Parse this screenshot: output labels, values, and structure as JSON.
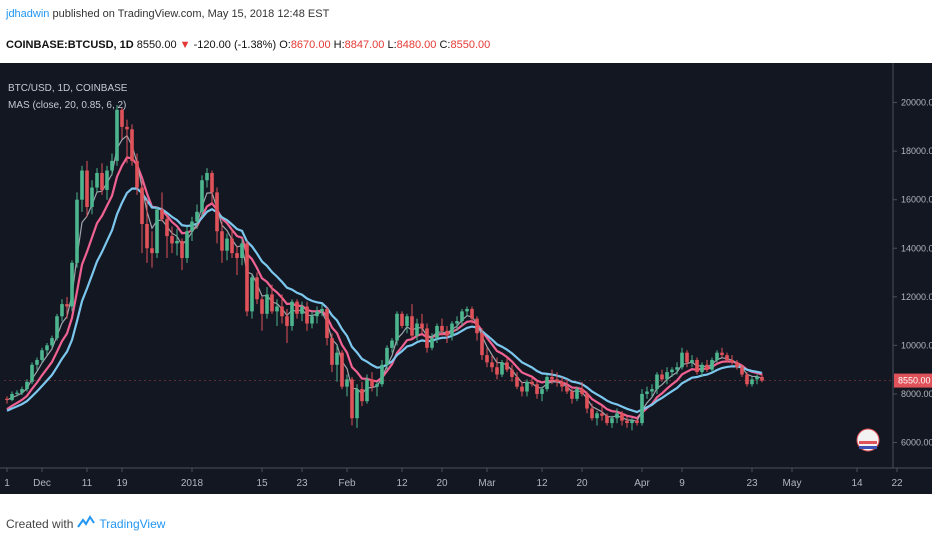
{
  "header": {
    "user": "jdhadwin",
    "published": "published on TradingView.com, May 15, 2018 12:48 EST",
    "symbol": "COINBASE:BTCUSD, 1D",
    "last": "8550.00",
    "arrow": "▼",
    "change": "-120.00 (-1.38%)",
    "o_label": "O:",
    "o": "8670.00",
    "h_label": "H:",
    "h": "8847.00",
    "l_label": "L:",
    "l": "8480.00",
    "c_label": "C:",
    "c": "8550.00"
  },
  "legend": {
    "line1": "BTC/USD, 1D, COINBASE",
    "line2": "MAS (close, 20, 0.85, 6, 2)"
  },
  "footer": {
    "created_with": "Created with",
    "brand": "TradingView",
    "logo_icon": "tradingview-logo-icon"
  },
  "chart_data": {
    "type": "candlestick",
    "y_ticks": [
      "6000.00",
      "8000.00",
      "10000.00",
      "12000.00",
      "14000.00",
      "16000.00",
      "18000.00",
      "20000.00"
    ],
    "ylim": [
      4950,
      21300
    ],
    "x_ticks": [
      {
        "day": 0,
        "label": "1"
      },
      {
        "day": 7,
        "label": "Dec"
      },
      {
        "day": 16,
        "label": "11"
      },
      {
        "day": 23,
        "label": "19"
      },
      {
        "day": 37,
        "label": "2018"
      },
      {
        "day": 51,
        "label": "15"
      },
      {
        "day": 59,
        "label": "23"
      },
      {
        "day": 68,
        "label": "Feb"
      },
      {
        "day": 79,
        "label": "12"
      },
      {
        "day": 87,
        "label": "20"
      },
      {
        "day": 96,
        "label": "Mar"
      },
      {
        "day": 107,
        "label": "12"
      },
      {
        "day": 115,
        "label": "20"
      },
      {
        "day": 127,
        "label": "Apr"
      },
      {
        "day": 135,
        "label": "9"
      },
      {
        "day": 149,
        "label": "23"
      },
      {
        "day": 157,
        "label": "May"
      },
      {
        "day": 170,
        "label": "14"
      },
      {
        "day": 178,
        "label": "22"
      }
    ],
    "last_price_label": "8550.00",
    "candles": [
      [
        7800,
        7900,
        7600,
        7750
      ],
      [
        7750,
        8100,
        7700,
        8000
      ],
      [
        8000,
        8150,
        7900,
        8050
      ],
      [
        8050,
        8300,
        7950,
        8200
      ],
      [
        8200,
        8600,
        8100,
        8500
      ],
      [
        8500,
        9300,
        8400,
        9200
      ],
      [
        9200,
        9500,
        9000,
        9400
      ],
      [
        9400,
        9900,
        9300,
        9800
      ],
      [
        9800,
        10100,
        9600,
        10000
      ],
      [
        10000,
        10400,
        9900,
        10300
      ],
      [
        10300,
        11300,
        10200,
        11200
      ],
      [
        11200,
        11900,
        11000,
        11700
      ],
      [
        11700,
        12000,
        11100,
        11600
      ],
      [
        11600,
        13500,
        11400,
        13400
      ],
      [
        13400,
        16300,
        13200,
        16000
      ],
      [
        16000,
        17400,
        15500,
        17200
      ],
      [
        17200,
        17600,
        15300,
        15700
      ],
      [
        15700,
        16800,
        15400,
        16500
      ],
      [
        16500,
        17300,
        16300,
        17100
      ],
      [
        17100,
        17500,
        16200,
        16400
      ],
      [
        16400,
        17400,
        16000,
        17200
      ],
      [
        17200,
        17900,
        17000,
        17600
      ],
      [
        17600,
        19900,
        17400,
        19700
      ],
      [
        19700,
        19800,
        18500,
        19000
      ],
      [
        19000,
        19300,
        17500,
        18900
      ],
      [
        18900,
        19100,
        17400,
        17600
      ],
      [
        17600,
        17900,
        16200,
        16500
      ],
      [
        16500,
        16800,
        13800,
        15000
      ],
      [
        15000,
        16000,
        13400,
        14000
      ],
      [
        14000,
        14700,
        13200,
        13800
      ],
      [
        13800,
        15700,
        13600,
        15600
      ],
      [
        15600,
        16300,
        15100,
        15200
      ],
      [
        15200,
        15400,
        13600,
        14500
      ],
      [
        14500,
        14900,
        13800,
        14200
      ],
      [
        14200,
        14800,
        13700,
        14300
      ],
      [
        14300,
        14400,
        13100,
        13600
      ],
      [
        13600,
        14900,
        13400,
        14700
      ],
      [
        14700,
        15300,
        14300,
        15100
      ],
      [
        15100,
        15800,
        14800,
        15500
      ],
      [
        15500,
        17000,
        15300,
        16800
      ],
      [
        16800,
        17300,
        16500,
        17100
      ],
      [
        17100,
        17200,
        15800,
        16300
      ],
      [
        16300,
        16500,
        14200,
        14700
      ],
      [
        14700,
        15100,
        13400,
        13900
      ],
      [
        13900,
        14600,
        13500,
        14400
      ],
      [
        14400,
        14800,
        13600,
        13800
      ],
      [
        13800,
        14100,
        12900,
        13600
      ],
      [
        13600,
        14400,
        13300,
        14200
      ],
      [
        14200,
        14300,
        11200,
        11400
      ],
      [
        11400,
        12900,
        11100,
        12800
      ],
      [
        12800,
        13000,
        11700,
        11900
      ],
      [
        11900,
        12000,
        10600,
        11300
      ],
      [
        11300,
        12400,
        11100,
        12100
      ],
      [
        12100,
        12500,
        11300,
        11400
      ],
      [
        11400,
        11900,
        10800,
        11600
      ],
      [
        11600,
        12100,
        10900,
        11200
      ],
      [
        11200,
        11500,
        10100,
        10800
      ],
      [
        10800,
        11900,
        10600,
        11800
      ],
      [
        11800,
        11900,
        11100,
        11300
      ],
      [
        11300,
        11800,
        11000,
        11600
      ],
      [
        11600,
        11800,
        10600,
        10900
      ],
      [
        10900,
        11400,
        10700,
        11200
      ],
      [
        11200,
        11600,
        10900,
        11400
      ],
      [
        11400,
        11700,
        11200,
        11500
      ],
      [
        11500,
        11600,
        10000,
        10300
      ],
      [
        10300,
        10500,
        8900,
        9200
      ],
      [
        9200,
        10000,
        8500,
        9700
      ],
      [
        9700,
        9800,
        8200,
        8300
      ],
      [
        8300,
        8800,
        7900,
        8600
      ],
      [
        8600,
        8700,
        6700,
        7000
      ],
      [
        7000,
        8400,
        6600,
        8200
      ],
      [
        8200,
        8500,
        7500,
        7700
      ],
      [
        7700,
        8800,
        7600,
        8600
      ],
      [
        8600,
        8900,
        8100,
        8300
      ],
      [
        8300,
        8500,
        7900,
        8400
      ],
      [
        8400,
        9400,
        8300,
        9200
      ],
      [
        9200,
        10000,
        9000,
        9900
      ],
      [
        9900,
        10300,
        9700,
        10200
      ],
      [
        10200,
        11400,
        10000,
        11300
      ],
      [
        11300,
        11400,
        10700,
        10800
      ],
      [
        10800,
        11300,
        10500,
        11200
      ],
      [
        11200,
        11700,
        10300,
        10400
      ],
      [
        10400,
        11100,
        10200,
        10900
      ],
      [
        10900,
        11300,
        10500,
        10700
      ],
      [
        10700,
        10900,
        9700,
        9900
      ],
      [
        9900,
        10500,
        9800,
        10300
      ],
      [
        10300,
        10900,
        10100,
        10800
      ],
      [
        10800,
        11100,
        10400,
        10600
      ],
      [
        10600,
        10800,
        10100,
        10400
      ],
      [
        10400,
        11000,
        10200,
        10900
      ],
      [
        10900,
        11200,
        10600,
        11000
      ],
      [
        11000,
        11500,
        10800,
        11400
      ],
      [
        11400,
        11600,
        11200,
        11500
      ],
      [
        11500,
        11600,
        10900,
        11100
      ],
      [
        11100,
        11200,
        10200,
        10500
      ],
      [
        10500,
        10700,
        9400,
        9600
      ],
      [
        9600,
        9900,
        9100,
        9300
      ],
      [
        9300,
        9600,
        8900,
        9100
      ],
      [
        9100,
        9500,
        8600,
        8800
      ],
      [
        8800,
        9400,
        8700,
        9300
      ],
      [
        9300,
        9500,
        8900,
        9000
      ],
      [
        9000,
        9200,
        8500,
        8700
      ],
      [
        8700,
        8900,
        8200,
        8300
      ],
      [
        8300,
        8500,
        7900,
        8100
      ],
      [
        8100,
        8600,
        7900,
        8500
      ],
      [
        8500,
        8700,
        8300,
        8400
      ],
      [
        8400,
        8500,
        7800,
        8000
      ],
      [
        8000,
        8300,
        7700,
        8200
      ],
      [
        8200,
        8800,
        8100,
        8700
      ],
      [
        8700,
        9000,
        8400,
        8600
      ],
      [
        8600,
        8900,
        8300,
        8500
      ],
      [
        8500,
        8700,
        8100,
        8300
      ],
      [
        8300,
        8600,
        8000,
        8100
      ],
      [
        8100,
        8200,
        7600,
        7800
      ],
      [
        7800,
        8300,
        7700,
        8200
      ],
      [
        8200,
        8500,
        7900,
        8000
      ],
      [
        8000,
        8100,
        7200,
        7400
      ],
      [
        7400,
        7600,
        6900,
        7000
      ],
      [
        7000,
        7300,
        6700,
        7200
      ],
      [
        7200,
        7500,
        6900,
        7100
      ],
      [
        7100,
        7200,
        6700,
        6800
      ],
      [
        6800,
        7100,
        6600,
        7000
      ],
      [
        7000,
        7400,
        6800,
        7200
      ],
      [
        7200,
        7300,
        6700,
        6900
      ],
      [
        6900,
        7100,
        6600,
        6800
      ],
      [
        6800,
        7000,
        6500,
        6900
      ],
      [
        6900,
        7000,
        6700,
        6800
      ],
      [
        6800,
        8200,
        6700,
        8000
      ],
      [
        8000,
        8300,
        7800,
        8100
      ],
      [
        8100,
        8400,
        7900,
        8200
      ],
      [
        8200,
        8900,
        8000,
        8800
      ],
      [
        8800,
        9000,
        8500,
        8600
      ],
      [
        8600,
        9100,
        8400,
        8900
      ],
      [
        8900,
        9100,
        8700,
        9000
      ],
      [
        9000,
        9300,
        8800,
        9100
      ],
      [
        9100,
        9900,
        9000,
        9700
      ],
      [
        9700,
        9800,
        9100,
        9300
      ],
      [
        9300,
        9600,
        9100,
        9400
      ],
      [
        9400,
        9500,
        8800,
        8900
      ],
      [
        8900,
        9300,
        8700,
        9200
      ],
      [
        9200,
        9400,
        8900,
        9000
      ],
      [
        9000,
        9500,
        8900,
        9400
      ],
      [
        9400,
        9800,
        9300,
        9700
      ],
      [
        9700,
        9900,
        9500,
        9600
      ],
      [
        9600,
        9700,
        9300,
        9400
      ],
      [
        9400,
        9600,
        9200,
        9300
      ],
      [
        9300,
        9400,
        9000,
        9100
      ],
      [
        9100,
        9200,
        8700,
        8800
      ],
      [
        8800,
        8900,
        8300,
        8400
      ],
      [
        8400,
        8700,
        8300,
        8600
      ],
      [
        8600,
        8800,
        8400,
        8700
      ],
      [
        8700,
        8850,
        8480,
        8550
      ]
    ],
    "ma_fast_color": "#a0a4ab",
    "ma_mid_color": "#7cc7ee",
    "ma_slow_color": "#f06292",
    "up_color": "#4db68f",
    "down_color": "#e0525a"
  }
}
